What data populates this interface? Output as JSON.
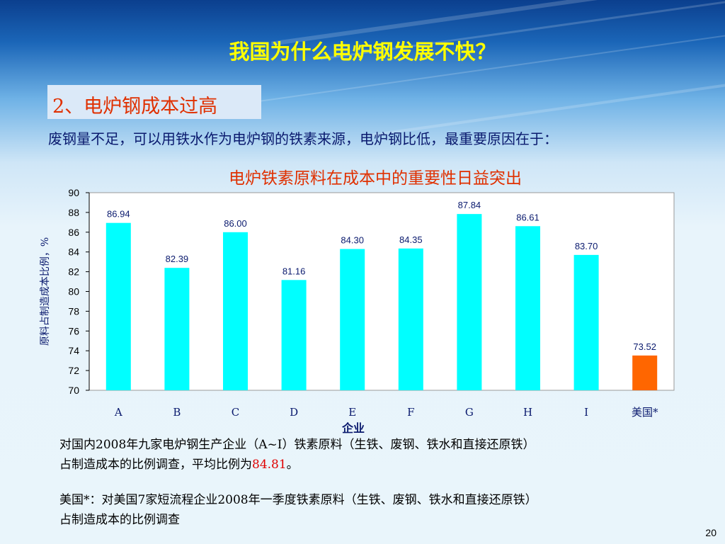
{
  "slide": {
    "title": "我国为什么电炉钢发展不快？",
    "section_label": "2、电炉钢成本过高",
    "lead_text": "废钢量不足，可以用铁水作为电炉钢的铁素来源，电炉钢比低，最重要原因在于：",
    "page_number": "20"
  },
  "notes": {
    "domestic_line1": "对国内2008年九家电炉钢生产企业（A~I）铁素原料（生铁、废钢、铁水和直接还原铁）",
    "domestic_line2_prefix": "占制造成本的比例调查，平均比例为",
    "domestic_average": "84.81",
    "domestic_line2_suffix": "。",
    "us_line1": "美国*：对美国7家短流程企业2008年一季度铁素原料（生铁、废钢、铁水和直接还原铁）",
    "us_line2": "占制造成本的比例调查"
  },
  "chart_data": {
    "type": "bar",
    "title": "电炉铁素原料在成本中的重要性日益突出",
    "xlabel": "企业",
    "ylabel": "原料占制造成本比例，%",
    "categories": [
      "A",
      "B",
      "C",
      "D",
      "E",
      "F",
      "G",
      "H",
      "I",
      "美国*"
    ],
    "values": [
      86.94,
      82.39,
      86.0,
      81.16,
      84.3,
      84.35,
      87.84,
      86.61,
      83.7,
      73.52
    ],
    "data_labels": [
      "86.94",
      "82.39",
      "86.00",
      "81.16",
      "84.30",
      "84.35",
      "87.84",
      "86.61",
      "83.70",
      "73.52"
    ],
    "ylim": [
      70,
      90
    ],
    "yticks": [
      70,
      72,
      74,
      76,
      78,
      80,
      82,
      84,
      86,
      88,
      90
    ],
    "grid": false,
    "legend": "none",
    "colors": {
      "domestic": "#00ffff",
      "us": "#ff6600",
      "plot_background": "#ffffff"
    }
  }
}
